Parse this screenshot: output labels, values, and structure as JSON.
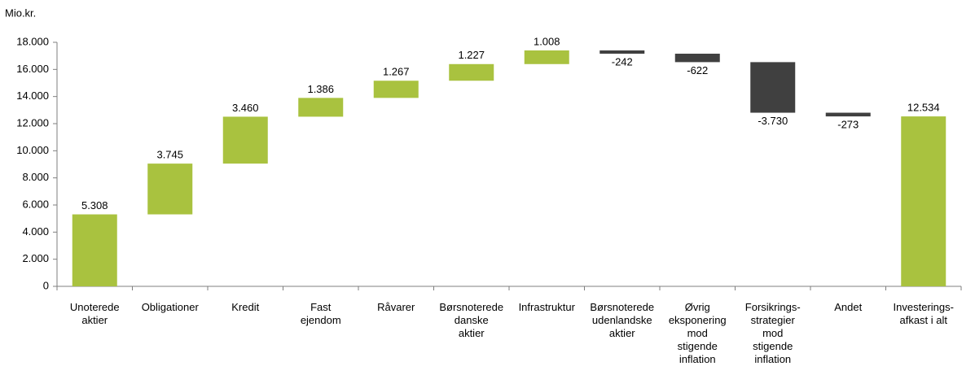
{
  "chart_data": {
    "type": "waterfall",
    "y_label": "Mio.kr.",
    "categories": [
      "Unoterede\naktier",
      "Obligationer",
      "Kredit",
      "Fast\nejendom",
      "Råvarer",
      "Børsnoterede\ndanske\naktier",
      "Infrastruktur",
      "Børsnoterede\nudenlandske\naktier",
      "Øvrig\neksponering\nmod\nstigende\ninflation",
      "Forsikrings-\nstrategier\nmod\nstigende\ninflation",
      "Andet",
      "Investerings-\nafkast i alt"
    ],
    "values": [
      5308,
      3745,
      3460,
      1386,
      1267,
      1227,
      1008,
      -242,
      -622,
      -3730,
      -273,
      12534
    ],
    "value_labels": [
      "5.308",
      "3.745",
      "3.460",
      "1.386",
      "1.267",
      "1.227",
      "1.008",
      "-242",
      "-622",
      "-3.730",
      "-273",
      "12.534"
    ],
    "last_is_total": true,
    "colors": {
      "increase": "#a9c23f",
      "decrease": "#404040",
      "total": "#a9c23f"
    },
    "ylim": [
      0,
      18000
    ],
    "yticks": [
      0,
      {
        "value": 2000,
        "label": "2.000"
      },
      {
        "value": 4000,
        "label": "4.000"
      },
      {
        "value": 6000,
        "label": "6.000"
      },
      {
        "value": 8000,
        "label": "8.000"
      },
      {
        "value": 10000,
        "label": "10.000"
      },
      {
        "value": 12000,
        "label": "12.000"
      },
      {
        "value": 14000,
        "label": "14.000"
      },
      {
        "value": 16000,
        "label": "16.000"
      },
      {
        "value": 18000,
        "label": "18.000"
      }
    ]
  }
}
